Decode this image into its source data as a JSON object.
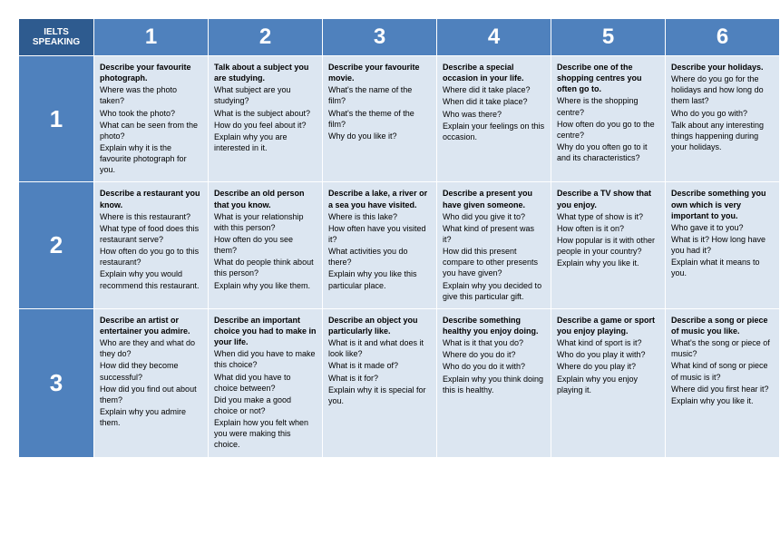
{
  "header_corner": "IELTS SPEAKING",
  "col_labels": [
    "1",
    "2",
    "3",
    "4",
    "5",
    "6"
  ],
  "row_labels": [
    "1",
    "2",
    "3"
  ],
  "colors": {
    "corner_bg": "#2e5b8f",
    "header_bg": "#4f81bd",
    "cell_bg": "#dce6f1",
    "border": "#ffffff",
    "header_text": "#ffffff",
    "cell_text": "#000000"
  },
  "cells": {
    "r1c1": {
      "title": "Describe your favourite photograph.",
      "lines": [
        "Where was the photo taken?",
        "Who took the photo?",
        "What can be seen from the photo?",
        "Explain why it is the favourite photograph for you."
      ]
    },
    "r1c2": {
      "title": "Talk about a subject you are studying.",
      "lines": [
        "What subject are you studying?",
        "What is the subject about?",
        "How do you feel about it?",
        "Explain why you are interested in it."
      ]
    },
    "r1c3": {
      "title": "Describe your favourite movie.",
      "lines": [
        "What's the name of the film?",
        "What's the theme of the film?",
        "Why do you like it?"
      ]
    },
    "r1c4": {
      "title": "Describe a special occasion in your life.",
      "lines": [
        "Where did it take place?",
        "When did it take place?",
        "Who was there?",
        "Explain your feelings on this occasion."
      ]
    },
    "r1c5": {
      "title": "Describe one of the shopping centres you often go to.",
      "lines": [
        "Where is the shopping centre?",
        "How often do you go to the centre?",
        "Why do you often go to it and its characteristics?"
      ]
    },
    "r1c6": {
      "title": "Describe your holidays.",
      "lines": [
        "Where do you go for the holidays and how long do them last?",
        "Who do you go with?",
        "Talk about any interesting things happening during your holidays."
      ]
    },
    "r2c1": {
      "title": "Describe a restaurant you know.",
      "lines": [
        "Where is this restaurant?",
        "What type of food does this restaurant serve?",
        "How often do you go to this restaurant?",
        "Explain why you would recommend this restaurant."
      ]
    },
    "r2c2": {
      "title": "Describe an old person that you know.",
      "lines": [
        "What is your relationship with this person?",
        "How often do you see them?",
        "What do people think about this person?",
        "Explain why you like them."
      ]
    },
    "r2c3": {
      "title": "Describe a lake, a river or a sea you have visited.",
      "lines": [
        "Where is this lake?",
        "How often have you visited it?",
        "What activities you do there?",
        "Explain why you like this particular place."
      ]
    },
    "r2c4": {
      "title": "Describe a present you have given someone.",
      "lines": [
        "Who did you give it to?",
        "What kind of present was it?",
        "How did this present compare to other presents you have given?",
        "Explain why you decided to give this particular gift."
      ]
    },
    "r2c5": {
      "title": "Describe a TV show that you enjoy.",
      "lines": [
        "What type of show is it?",
        "How often is it on?",
        "How popular is it with other people in your country?",
        "Explain why you like it."
      ]
    },
    "r2c6": {
      "title": "Describe something you own which is very important to you.",
      "lines": [
        "Who gave it to you?",
        "What is it? How long have you had it?",
        "Explain what it means to you."
      ]
    },
    "r3c1": {
      "title": "Describe an artist or entertainer you admire.",
      "lines": [
        "Who are they and what do they do?",
        "How did they become successful?",
        "How did you find out about them?",
        "Explain why you admire them."
      ]
    },
    "r3c2": {
      "title": "Describe an important choice you had to make in your life.",
      "lines": [
        "When did you have to make this choice?",
        "What did you have to choice between?",
        "Did you make a good choice or not?",
        "Explain how you felt when you were making this choice."
      ]
    },
    "r3c3": {
      "title": "Describe an object you particularly like.",
      "lines": [
        "What is it and what does it look like?",
        "What is it made of?",
        "What is it for?",
        "Explain why it is special for you."
      ]
    },
    "r3c4": {
      "title": "Describe something healthy you enjoy doing.",
      "lines": [
        "What is it that you do?",
        "Where do you do it?",
        "Who do you do it with?",
        "Explain why you think doing this is healthy."
      ]
    },
    "r3c5": {
      "title": "Describe a game or sport you enjoy playing.",
      "lines": [
        "What kind of sport is it?",
        "Who do you play it with?",
        "Where do you play it?",
        "Explain why you enjoy playing it."
      ]
    },
    "r3c6": {
      "title": "Describe a song or piece of music you like.",
      "lines": [
        "What's the song or piece of music?",
        "What kind of song or piece of music is it?",
        "Where did you first hear it?",
        "Explain why you like it."
      ]
    }
  }
}
